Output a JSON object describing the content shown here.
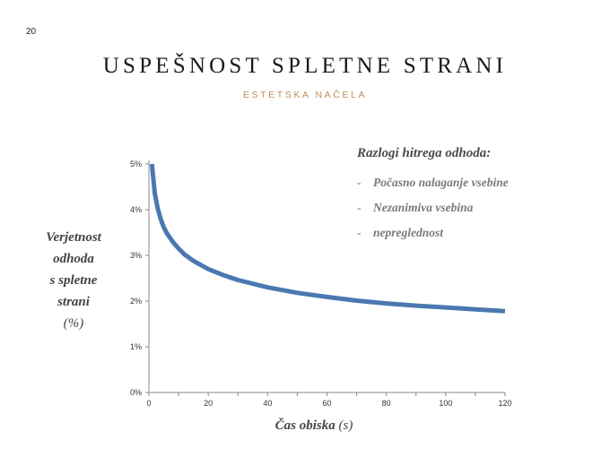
{
  "slide": {
    "page_number": "20",
    "title": "USPEŠNOST SPLETNE STRANI",
    "subtitle": "ESTETSKA NAČELA"
  },
  "y_axis_title": {
    "lines": [
      "Verjetnost",
      "odhoda",
      "s spletne",
      "strani"
    ],
    "unit": "(%)"
  },
  "x_axis_title": {
    "text": "Čas obiska",
    "unit": "(s)"
  },
  "reasons": {
    "heading": "Razlogi hitrega odhoda:",
    "bullet": "-",
    "items": [
      "Počasno nalaganje vsebine",
      "Nezanimiva vsebina",
      "nepreglednost"
    ]
  },
  "chart_data": {
    "type": "line",
    "xlabel": "Čas obiska (s)",
    "ylabel": "Verjetnost odhoda s spletne strani (%)",
    "xlim": [
      0,
      120
    ],
    "ylim": [
      0,
      5
    ],
    "x_ticks": [
      0,
      20,
      40,
      60,
      80,
      100,
      120
    ],
    "y_ticks": [
      0,
      1,
      2,
      3,
      4,
      5
    ],
    "y_tick_suffix": "%",
    "grid": false,
    "series_color": "#4a78b0",
    "series": [
      {
        "x": [
          1,
          2,
          3,
          4,
          5,
          6,
          8,
          10,
          12,
          15,
          20,
          25,
          30,
          40,
          50,
          60,
          70,
          80,
          90,
          100,
          110,
          120
        ],
        "y": [
          5.0,
          4.35,
          4.02,
          3.79,
          3.62,
          3.49,
          3.3,
          3.15,
          3.02,
          2.88,
          2.7,
          2.57,
          2.46,
          2.3,
          2.18,
          2.09,
          2.01,
          1.95,
          1.9,
          1.86,
          1.82,
          1.78
        ]
      }
    ]
  }
}
